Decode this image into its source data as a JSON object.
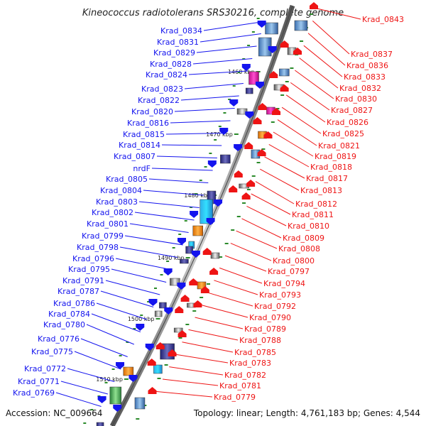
{
  "title": "Kineococcus radiotolerans SRS30216, complete genome",
  "accession": "Accession: NC_009664",
  "summary": "Topology: linear; Length: 4,761,183 bp; Genes: 4,544",
  "colors": {
    "forward": "#1414ee",
    "reverse": "#ee1414",
    "backbone": "#7a7a7a",
    "tick": "#2a8a2a"
  },
  "ticks": [
    {
      "label": "1460 kbp"
    },
    {
      "label": "1470 kbp"
    },
    {
      "label": "1480 kbp"
    },
    {
      "label": "1490 kbp"
    },
    {
      "label": "1500 kbp"
    },
    {
      "label": "1510 kbp"
    }
  ],
  "forward_genes": [
    {
      "label": "Krad_0834"
    },
    {
      "label": "Krad_0831"
    },
    {
      "label": "Krad_0829"
    },
    {
      "label": "Krad_0828"
    },
    {
      "label": "Krad_0824"
    },
    {
      "label": "Krad_0823"
    },
    {
      "label": "Krad_0822"
    },
    {
      "label": "Krad_0820"
    },
    {
      "label": "Krad_0816"
    },
    {
      "label": "Krad_0815"
    },
    {
      "label": "Krad_0814"
    },
    {
      "label": "Krad_0807"
    },
    {
      "label": "nrdF"
    },
    {
      "label": "Krad_0805"
    },
    {
      "label": "Krad_0804"
    },
    {
      "label": "Krad_0803"
    },
    {
      "label": "Krad_0802"
    },
    {
      "label": "Krad_0801"
    },
    {
      "label": "Krad_0799"
    },
    {
      "label": "Krad_0798"
    },
    {
      "label": "Krad_0796"
    },
    {
      "label": "Krad_0795"
    },
    {
      "label": "Krad_0791"
    },
    {
      "label": "Krad_0787"
    },
    {
      "label": "Krad_0786"
    },
    {
      "label": "Krad_0784"
    },
    {
      "label": "Krad_0780"
    },
    {
      "label": "Krad_0776"
    },
    {
      "label": "Krad_0775"
    },
    {
      "label": "Krad_0772"
    },
    {
      "label": "Krad_0771"
    },
    {
      "label": "Krad_0769"
    }
  ],
  "reverse_genes": [
    {
      "label": "Krad_0843"
    },
    {
      "label": "Krad_0837"
    },
    {
      "label": "Krad_0836"
    },
    {
      "label": "Krad_0833"
    },
    {
      "label": "Krad_0832"
    },
    {
      "label": "Krad_0830"
    },
    {
      "label": "Krad_0827"
    },
    {
      "label": "Krad_0826"
    },
    {
      "label": "Krad_0825"
    },
    {
      "label": "Krad_0821"
    },
    {
      "label": "Krad_0819"
    },
    {
      "label": "Krad_0818"
    },
    {
      "label": "Krad_0817"
    },
    {
      "label": "Krad_0813"
    },
    {
      "label": "Krad_0812"
    },
    {
      "label": "Krad_0811"
    },
    {
      "label": "Krad_0810"
    },
    {
      "label": "Krad_0809"
    },
    {
      "label": "Krad_0808"
    },
    {
      "label": "Krad_0800"
    },
    {
      "label": "Krad_0797"
    },
    {
      "label": "Krad_0794"
    },
    {
      "label": "Krad_0793"
    },
    {
      "label": "Krad_0792"
    },
    {
      "label": "Krad_0790"
    },
    {
      "label": "Krad_0789"
    },
    {
      "label": "Krad_0788"
    },
    {
      "label": "Krad_0785"
    },
    {
      "label": "Krad_0783"
    },
    {
      "label": "Krad_0782"
    },
    {
      "label": "Krad_0781"
    },
    {
      "label": "Krad_0779"
    }
  ]
}
